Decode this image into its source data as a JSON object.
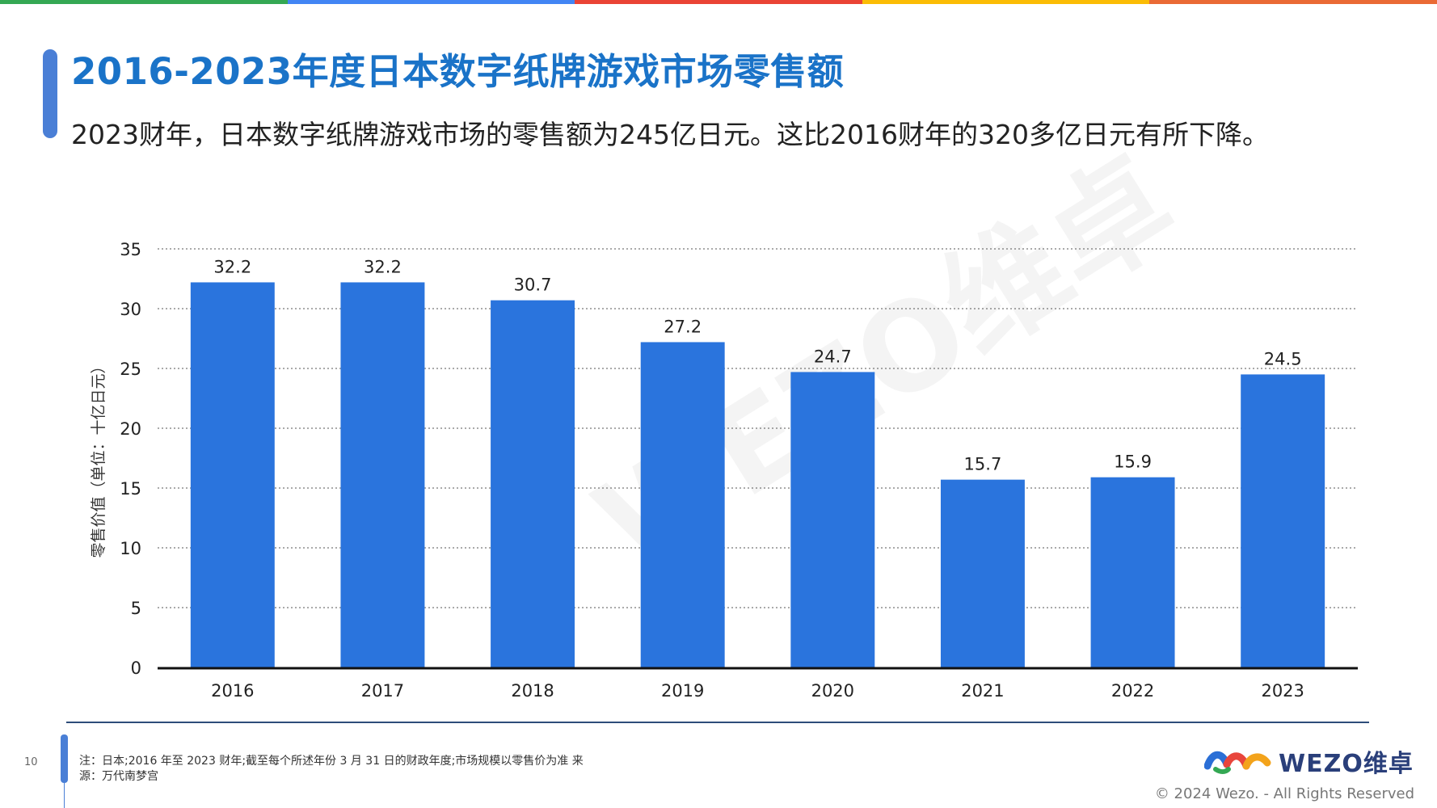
{
  "title": "2016-2023年度日本数字纸牌游戏市场零售额",
  "subtitle": "2023财年，日本数字纸牌游戏市场的零售额为245亿日元。这比2016财年的320多亿日元有所下降。",
  "colors": {
    "topbar": [
      "#34a853",
      "#4285f4",
      "#ea4335",
      "#fbbc05",
      "#ea6a35"
    ],
    "bar": "#2a74dd",
    "title": "#1a73c8",
    "accent": "#4a7fd6"
  },
  "chart_data": {
    "type": "bar",
    "categories": [
      "2016",
      "2017",
      "2018",
      "2019",
      "2020",
      "2021",
      "2022",
      "2023"
    ],
    "values": [
      32.2,
      32.2,
      30.7,
      27.2,
      24.7,
      15.7,
      15.9,
      24.5
    ],
    "data_labels": [
      "32.2",
      "32.2",
      "30.7",
      "27.2",
      "24.7",
      "15.7",
      "15.9",
      "24.5"
    ],
    "y_ticks": [
      "0",
      "5",
      "10",
      "15",
      "20",
      "25",
      "30",
      "35"
    ],
    "ylabel": "零售价值（单位：十亿日元）",
    "xlabel": "",
    "ylim": [
      0,
      35
    ],
    "grid": "dotted horizontal"
  },
  "footer": {
    "page_number": "10",
    "note": "注：日本;2016 年至 2023 财年;截至每个所述年份 3 月 31 日的财政年度;市场规模以零售价为准 来源：万代南梦宫",
    "logo_text": "WEZO维卓",
    "copyright": "© 2024 Wezo. - All Rights Reserved"
  },
  "watermark": "WEZO维卓"
}
